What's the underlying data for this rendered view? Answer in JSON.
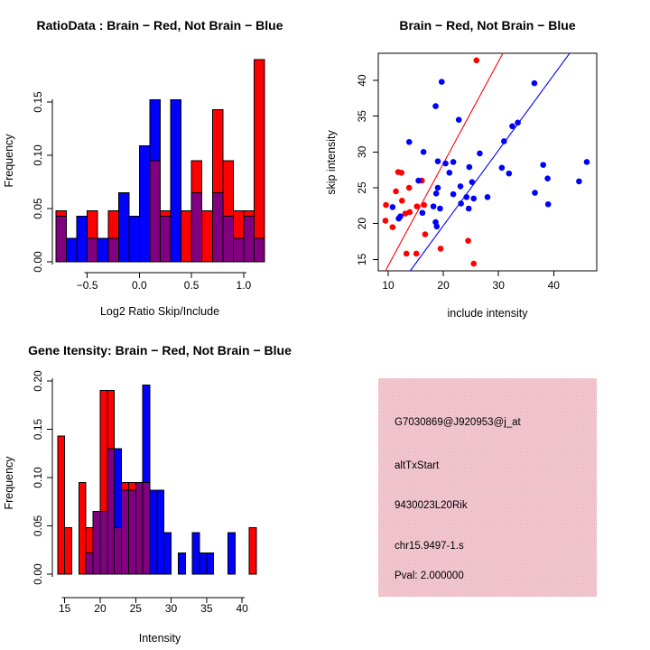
{
  "colors": {
    "red": "#FF0000",
    "blue": "#0000FF",
    "purple": "#800080",
    "axis": "#000000",
    "info_bg": "#F2C6CF",
    "info_dot": "#E3AFBC",
    "pval_red": "#8B1A1A",
    "background": "#FFFFFF"
  },
  "chart_data": [
    {
      "id": "ratio_histogram",
      "type": "bar",
      "subtype": "overlaid-histogram",
      "title": "RatioData : Brain − Red, Not Brain − Blue",
      "xlabel": "Log2 Ratio Skip/Include",
      "ylabel": "Frequency",
      "bin_start": -0.8,
      "bin_width": 0.1,
      "xlim": [
        -0.8,
        1.2
      ],
      "ylim": [
        0,
        0.19
      ],
      "grid": false,
      "series": [
        {
          "name": "Brain (red)",
          "color_key": "red",
          "values": [
            0.048,
            0,
            0,
            0.048,
            0,
            0.048,
            0,
            0,
            0,
            0.095,
            0.048,
            0,
            0.048,
            0.095,
            0.048,
            0.143,
            0.095,
            0.048,
            0.048,
            0.19
          ]
        },
        {
          "name": "Not Brain (blue)",
          "color_key": "blue",
          "values": [
            0.043,
            0.022,
            0.043,
            0.022,
            0.022,
            0.022,
            0.065,
            0.043,
            0.109,
            0.152,
            0.043,
            0.152,
            0,
            0.065,
            0,
            0.065,
            0.043,
            0.022,
            0.043,
            0.022
          ]
        }
      ],
      "overlap_color_key": "purple",
      "xticks": {
        "values": [
          -0.5,
          0.0,
          0.5,
          1.0
        ],
        "labels": [
          "−0.5",
          "0.0",
          "0.5",
          "1.0"
        ]
      },
      "yticks": {
        "values": [
          0,
          0.05,
          0.1,
          0.15
        ],
        "labels": [
          "0.00",
          "0.05",
          "0.10",
          "0.15"
        ]
      }
    },
    {
      "id": "intensity_scatter",
      "type": "scatter",
      "title": "Brain − Red, Not Brain − Blue",
      "xlabel": "include intensity",
      "ylabel": "skip intensity",
      "xlim": [
        8.2,
        47.8
      ],
      "ylim": [
        13.1,
        43.8
      ],
      "grid": false,
      "xticks": {
        "values": [
          10,
          20,
          30,
          40
        ],
        "labels": [
          "10",
          "20",
          "30",
          "40"
        ]
      },
      "yticks": {
        "values": [
          15,
          20,
          25,
          30,
          35,
          40
        ],
        "labels": [
          "15",
          "20",
          "25",
          "30",
          "35",
          "40"
        ]
      },
      "series": [
        {
          "name": "Brain (red)",
          "color_key": "red",
          "points": [
            [
              26.0,
              42.8
            ],
            [
              11.8,
              27.2
            ],
            [
              12.4,
              27.1
            ],
            [
              11.4,
              24.5
            ],
            [
              13.8,
              25.0
            ],
            [
              16.1,
              26.0
            ],
            [
              9.6,
              22.6
            ],
            [
              12.5,
              23.2
            ],
            [
              13.1,
              21.4
            ],
            [
              13.9,
              21.6
            ],
            [
              15.2,
              22.4
            ],
            [
              16.5,
              22.6
            ],
            [
              9.5,
              20.4
            ],
            [
              10.8,
              19.5
            ],
            [
              16.7,
              18.5
            ],
            [
              13.3,
              15.8
            ],
            [
              15.1,
              15.8
            ],
            [
              19.5,
              16.5
            ],
            [
              24.5,
              17.6
            ],
            [
              25.5,
              14.4
            ]
          ]
        },
        {
          "name": "Not Brain (blue)",
          "color_key": "blue",
          "points": [
            [
              19.7,
              39.8
            ],
            [
              36.5,
              39.6
            ],
            [
              18.6,
              36.4
            ],
            [
              22.8,
              34.5
            ],
            [
              33.5,
              34.1
            ],
            [
              32.5,
              33.6
            ],
            [
              13.8,
              31.4
            ],
            [
              31.0,
              31.5
            ],
            [
              16.4,
              30.0
            ],
            [
              26.6,
              29.8
            ],
            [
              19.0,
              28.7
            ],
            [
              20.4,
              28.4
            ],
            [
              21.8,
              28.6
            ],
            [
              24.7,
              27.9
            ],
            [
              30.6,
              27.8
            ],
            [
              38.1,
              28.2
            ],
            [
              46.0,
              28.6
            ],
            [
              21.1,
              27.1
            ],
            [
              31.9,
              27.0
            ],
            [
              38.9,
              26.3
            ],
            [
              44.6,
              25.9
            ],
            [
              15.5,
              26.0
            ],
            [
              23.1,
              25.2
            ],
            [
              25.2,
              25.8
            ],
            [
              19.0,
              25.0
            ],
            [
              18.7,
              24.2
            ],
            [
              21.8,
              24.1
            ],
            [
              24.2,
              23.7
            ],
            [
              25.5,
              23.5
            ],
            [
              28.0,
              23.7
            ],
            [
              36.6,
              24.3
            ],
            [
              18.2,
              22.4
            ],
            [
              23.2,
              22.8
            ],
            [
              24.6,
              22.1
            ],
            [
              10.8,
              22.3
            ],
            [
              11.9,
              20.7
            ],
            [
              16.2,
              21.5
            ],
            [
              39.0,
              22.7
            ],
            [
              18.6,
              20.2
            ],
            [
              18.8,
              19.6
            ],
            [
              12.2,
              21.0
            ],
            [
              19.4,
              22.1
            ]
          ]
        }
      ],
      "fit_lines": [
        {
          "name": "brain fit",
          "color_key": "red",
          "from": [
            9.5,
            13.4
          ],
          "to": [
            30.8,
            43.8
          ]
        },
        {
          "name": "not-brain fit",
          "color_key": "blue",
          "from": [
            14.0,
            13.4
          ],
          "to": [
            42.9,
            43.8
          ]
        }
      ]
    },
    {
      "id": "gene_intensity_histogram",
      "type": "bar",
      "subtype": "overlaid-histogram",
      "title": "Gene Itensity: Brain − Red, Not Brain − Blue",
      "xlabel": "Intensity",
      "ylabel": "Frequency",
      "bin_start": 14,
      "bin_width": 1,
      "xlim": [
        14,
        42
      ],
      "ylim": [
        0,
        0.2
      ],
      "grid": false,
      "series": [
        {
          "name": "Brain (red)",
          "color_key": "red",
          "values": [
            0.143,
            0.048,
            0,
            0.095,
            0.048,
            0.065,
            0.19,
            0.19,
            0.048,
            0.095,
            0.095,
            0.095,
            0.095,
            0,
            0,
            0,
            0,
            0,
            0,
            0,
            0,
            0,
            0,
            0,
            0,
            0,
            0,
            0.048
          ]
        },
        {
          "name": "Not Brain (blue)",
          "color_key": "blue",
          "values": [
            0,
            0,
            0,
            0,
            0.022,
            0.065,
            0.065,
            0.13,
            0.13,
            0.087,
            0.087,
            0.095,
            0.196,
            0.087,
            0.087,
            0.043,
            0,
            0.022,
            0,
            0.043,
            0.022,
            0.022,
            0,
            0,
            0.043,
            0,
            0,
            0
          ]
        }
      ],
      "overlap_color_key": "purple",
      "xticks": {
        "values": [
          15,
          20,
          25,
          30,
          35,
          40
        ],
        "labels": [
          "15",
          "20",
          "25",
          "30",
          "35",
          "40"
        ]
      },
      "yticks": {
        "values": [
          0,
          0.05,
          0.1,
          0.15,
          0.2
        ],
        "labels": [
          "0.00",
          "0.05",
          "0.10",
          "0.15",
          "0.20"
        ]
      }
    }
  ],
  "info_panel": {
    "lines": [
      "G7030869@J920953@j_at",
      "altTxStart",
      "9430023L20Rik",
      "chr15.9497-1.s"
    ],
    "pval_line": "Pval: 2.000000"
  }
}
